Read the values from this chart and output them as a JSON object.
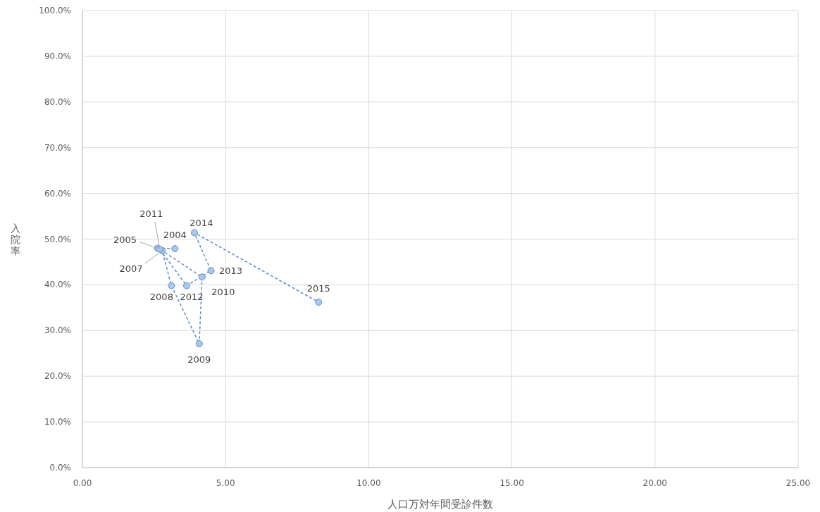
{
  "chart_data": {
    "type": "line",
    "xlabel": "人口万対年間受診件数",
    "ylabel": "入院率",
    "series": [
      {
        "color": "#5b8bc9",
        "x": [
          3.23,
          2.62,
          2.78,
          3.11,
          4.08,
          4.18,
          2.7,
          3.64,
          4.49,
          3.91,
          8.25
        ],
        "values": [
          47.9,
          48.0,
          47.5,
          39.8,
          27.1,
          41.7,
          47.8,
          39.8,
          43.1,
          51.4,
          36.2
        ]
      }
    ],
    "annotations": [
      {
        "text": "2004",
        "x": 3.23,
        "y": 47.9
      },
      {
        "text": "2005",
        "x": 2.62,
        "y": 48.0
      },
      {
        "text": "2007",
        "x": 2.78,
        "y": 47.5
      },
      {
        "text": "2008",
        "x": 3.11,
        "y": 39.8
      },
      {
        "text": "2009",
        "x": 4.08,
        "y": 27.1
      },
      {
        "text": "2010",
        "x": 4.18,
        "y": 41.7
      },
      {
        "text": "2011",
        "x": 2.7,
        "y": 47.8
      },
      {
        "text": "2012",
        "x": 3.64,
        "y": 39.8
      },
      {
        "text": "2013",
        "x": 4.49,
        "y": 43.1
      },
      {
        "text": "2014",
        "x": 3.91,
        "y": 51.4
      },
      {
        "text": "2015",
        "x": 8.25,
        "y": 36.2
      }
    ],
    "marker": "circle",
    "line_style": "dashed",
    "grid": true,
    "xlim": [
      0,
      25
    ],
    "ylim": [
      0,
      100
    ],
    "xticks": [
      {
        "value": 0,
        "label": "0.00"
      },
      {
        "value": 5,
        "label": "5.00"
      },
      {
        "value": 10,
        "label": "10.00"
      },
      {
        "value": 15,
        "label": "15.00"
      },
      {
        "value": 20,
        "label": "20.00"
      },
      {
        "value": 25,
        "label": "25.00"
      }
    ],
    "yticks": [
      {
        "value": 0,
        "label": "0.0%"
      },
      {
        "value": 10,
        "label": "10.0%"
      },
      {
        "value": 20,
        "label": "20.0%"
      },
      {
        "value": 30,
        "label": "30.0%"
      },
      {
        "value": 40,
        "label": "40.0%"
      },
      {
        "value": 50,
        "label": "50.0%"
      },
      {
        "value": 60,
        "label": "60.0%"
      },
      {
        "value": 70,
        "label": "70.0%"
      },
      {
        "value": 80,
        "label": "80.0%"
      },
      {
        "value": 90,
        "label": "90.0%"
      },
      {
        "value": 100,
        "label": "100.0%"
      }
    ]
  }
}
